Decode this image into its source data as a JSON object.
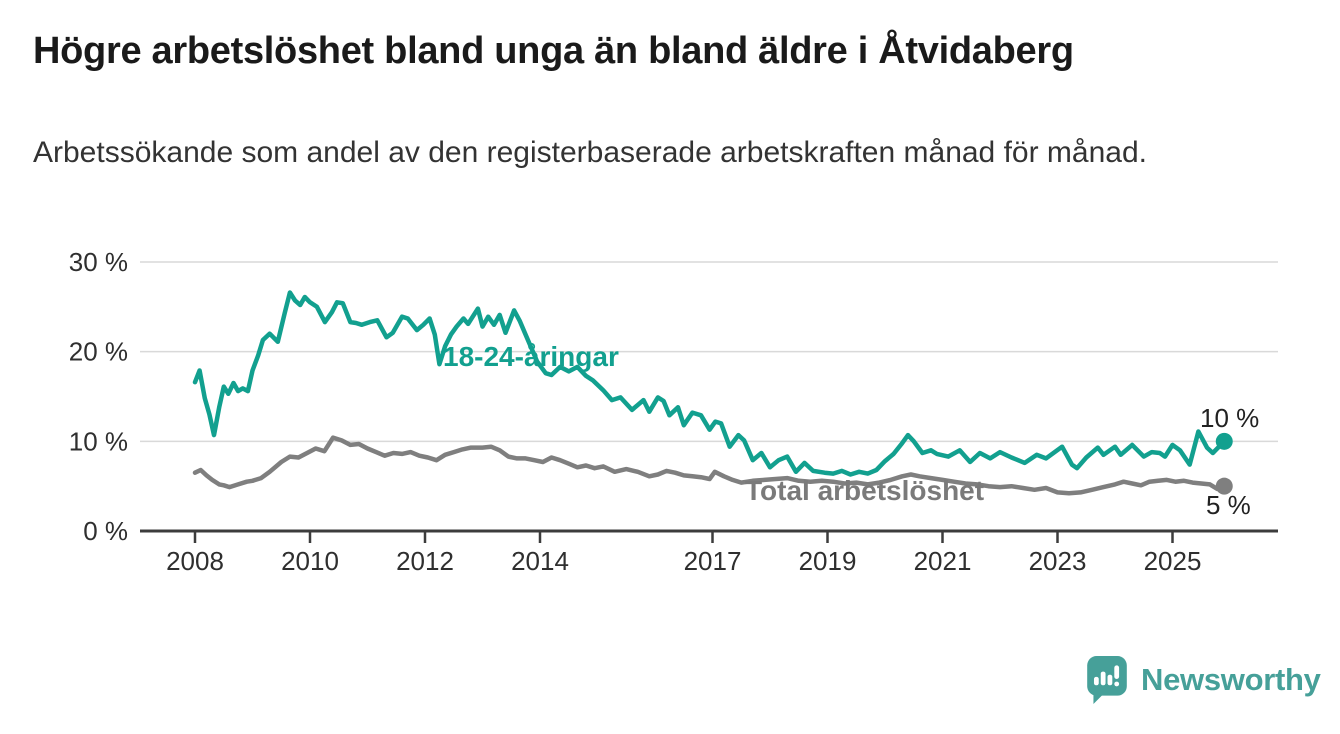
{
  "page": {
    "title": "Högre arbetslöshet bland unga än bland äldre i Åtvidaberg",
    "subtitle": "Arbetssökande som andel av den registerbaserade arbetskraften månad för månad."
  },
  "logo": {
    "text": "Newsworthy",
    "color": "#46a099"
  },
  "chart_data": {
    "type": "line",
    "title": "Högre arbetslöshet bland unga än bland äldre i Åtvidaberg",
    "xlabel": "",
    "ylabel": "",
    "unit": "%",
    "grid": "horizontal-gridlines",
    "legend_position": "labels-on-lines",
    "ylim": [
      0,
      30
    ],
    "x_range": [
      2008,
      2025.9
    ],
    "x_ticks": [
      2008,
      2010,
      2012,
      2014,
      2017,
      2019,
      2021,
      2023,
      2025
    ],
    "x_tick_labels": [
      "2008",
      "2010",
      "2012",
      "2014",
      "2017",
      "2019",
      "2021",
      "2023",
      "2025"
    ],
    "y_ticks": [
      0,
      10,
      20,
      30
    ],
    "y_tick_labels": [
      "0 %",
      "10 %",
      "20 %",
      "30 %"
    ],
    "series": [
      {
        "name": "18-24-åringar",
        "color": "#12a08f",
        "end_label": "10 %",
        "end_value": 10,
        "points": [
          [
            2008.0,
            16.6
          ],
          [
            2008.08,
            17.9
          ],
          [
            2008.17,
            14.8
          ],
          [
            2008.25,
            13.0
          ],
          [
            2008.33,
            10.7
          ],
          [
            2008.42,
            13.8
          ],
          [
            2008.5,
            16.1
          ],
          [
            2008.58,
            15.3
          ],
          [
            2008.67,
            16.5
          ],
          [
            2008.75,
            15.6
          ],
          [
            2008.83,
            15.9
          ],
          [
            2008.92,
            15.6
          ],
          [
            2009.0,
            17.9
          ],
          [
            2009.1,
            19.6
          ],
          [
            2009.18,
            21.3
          ],
          [
            2009.3,
            22.0
          ],
          [
            2009.44,
            21.1
          ],
          [
            2009.56,
            24.3
          ],
          [
            2009.65,
            26.6
          ],
          [
            2009.74,
            25.7
          ],
          [
            2009.83,
            25.2
          ],
          [
            2009.91,
            26.1
          ],
          [
            2010.0,
            25.5
          ],
          [
            2010.12,
            25.0
          ],
          [
            2010.26,
            23.3
          ],
          [
            2010.38,
            24.4
          ],
          [
            2010.47,
            25.5
          ],
          [
            2010.57,
            25.4
          ],
          [
            2010.7,
            23.3
          ],
          [
            2010.8,
            23.2
          ],
          [
            2010.9,
            23.0
          ],
          [
            2011.04,
            23.3
          ],
          [
            2011.17,
            23.5
          ],
          [
            2011.33,
            21.6
          ],
          [
            2011.44,
            22.1
          ],
          [
            2011.6,
            23.9
          ],
          [
            2011.7,
            23.7
          ],
          [
            2011.86,
            22.4
          ],
          [
            2011.97,
            23.0
          ],
          [
            2012.08,
            23.7
          ],
          [
            2012.17,
            21.9
          ],
          [
            2012.25,
            18.6
          ],
          [
            2012.35,
            20.6
          ],
          [
            2012.45,
            21.9
          ],
          [
            2012.55,
            22.8
          ],
          [
            2012.67,
            23.7
          ],
          [
            2012.75,
            23.1
          ],
          [
            2012.83,
            23.9
          ],
          [
            2012.92,
            24.8
          ],
          [
            2013.0,
            22.8
          ],
          [
            2013.1,
            23.9
          ],
          [
            2013.2,
            23.0
          ],
          [
            2013.3,
            24.1
          ],
          [
            2013.4,
            22.1
          ],
          [
            2013.55,
            24.6
          ],
          [
            2013.65,
            23.4
          ],
          [
            2013.75,
            21.9
          ],
          [
            2013.85,
            20.4
          ],
          [
            2013.95,
            18.9
          ],
          [
            2014.1,
            17.6
          ],
          [
            2014.2,
            17.4
          ],
          [
            2014.35,
            18.3
          ],
          [
            2014.5,
            17.8
          ],
          [
            2014.65,
            18.3
          ],
          [
            2014.8,
            17.3
          ],
          [
            2014.92,
            16.8
          ],
          [
            2015.1,
            15.7
          ],
          [
            2015.25,
            14.6
          ],
          [
            2015.4,
            14.9
          ],
          [
            2015.6,
            13.5
          ],
          [
            2015.8,
            14.6
          ],
          [
            2015.9,
            13.3
          ],
          [
            2016.05,
            14.9
          ],
          [
            2016.15,
            14.5
          ],
          [
            2016.25,
            12.9
          ],
          [
            2016.4,
            13.8
          ],
          [
            2016.5,
            11.8
          ],
          [
            2016.65,
            13.2
          ],
          [
            2016.8,
            12.9
          ],
          [
            2016.95,
            11.3
          ],
          [
            2017.05,
            12.2
          ],
          [
            2017.15,
            12.0
          ],
          [
            2017.3,
            9.4
          ],
          [
            2017.45,
            10.7
          ],
          [
            2017.55,
            10.1
          ],
          [
            2017.7,
            7.9
          ],
          [
            2017.85,
            8.7
          ],
          [
            2018.0,
            7.1
          ],
          [
            2018.15,
            7.9
          ],
          [
            2018.3,
            8.3
          ],
          [
            2018.45,
            6.6
          ],
          [
            2018.6,
            7.6
          ],
          [
            2018.75,
            6.7
          ],
          [
            2018.95,
            6.5
          ],
          [
            2019.1,
            6.4
          ],
          [
            2019.25,
            6.7
          ],
          [
            2019.4,
            6.3
          ],
          [
            2019.55,
            6.6
          ],
          [
            2019.7,
            6.4
          ],
          [
            2019.85,
            6.8
          ],
          [
            2020.0,
            7.8
          ],
          [
            2020.15,
            8.6
          ],
          [
            2020.3,
            9.8
          ],
          [
            2020.4,
            10.7
          ],
          [
            2020.5,
            10.0
          ],
          [
            2020.65,
            8.7
          ],
          [
            2020.8,
            9.0
          ],
          [
            2020.9,
            8.6
          ],
          [
            2021.1,
            8.3
          ],
          [
            2021.3,
            9.0
          ],
          [
            2021.48,
            7.7
          ],
          [
            2021.65,
            8.7
          ],
          [
            2021.83,
            8.1
          ],
          [
            2022.0,
            8.8
          ],
          [
            2022.2,
            8.2
          ],
          [
            2022.43,
            7.6
          ],
          [
            2022.64,
            8.5
          ],
          [
            2022.8,
            8.1
          ],
          [
            2023.08,
            9.4
          ],
          [
            2023.25,
            7.4
          ],
          [
            2023.34,
            7.0
          ],
          [
            2023.5,
            8.2
          ],
          [
            2023.7,
            9.3
          ],
          [
            2023.8,
            8.5
          ],
          [
            2024.0,
            9.4
          ],
          [
            2024.1,
            8.5
          ],
          [
            2024.3,
            9.6
          ],
          [
            2024.5,
            8.3
          ],
          [
            2024.64,
            8.8
          ],
          [
            2024.78,
            8.7
          ],
          [
            2024.87,
            8.3
          ],
          [
            2025.0,
            9.6
          ],
          [
            2025.13,
            9.0
          ],
          [
            2025.3,
            7.4
          ],
          [
            2025.45,
            11.1
          ],
          [
            2025.6,
            9.3
          ],
          [
            2025.7,
            8.7
          ],
          [
            2025.9,
            10.0
          ]
        ]
      },
      {
        "name": "Total arbetslöshet",
        "color": "#7f7f7f",
        "end_label": "5 %",
        "end_value": 5,
        "points": [
          [
            2008.0,
            6.5
          ],
          [
            2008.1,
            6.8
          ],
          [
            2008.2,
            6.2
          ],
          [
            2008.3,
            5.7
          ],
          [
            2008.42,
            5.2
          ],
          [
            2008.5,
            5.1
          ],
          [
            2008.6,
            4.9
          ],
          [
            2008.75,
            5.2
          ],
          [
            2008.9,
            5.5
          ],
          [
            2009.0,
            5.6
          ],
          [
            2009.15,
            5.9
          ],
          [
            2009.3,
            6.6
          ],
          [
            2009.5,
            7.7
          ],
          [
            2009.65,
            8.3
          ],
          [
            2009.8,
            8.2
          ],
          [
            2009.95,
            8.7
          ],
          [
            2010.1,
            9.2
          ],
          [
            2010.25,
            8.9
          ],
          [
            2010.4,
            10.4
          ],
          [
            2010.55,
            10.1
          ],
          [
            2010.7,
            9.6
          ],
          [
            2010.85,
            9.7
          ],
          [
            2011.0,
            9.2
          ],
          [
            2011.15,
            8.8
          ],
          [
            2011.3,
            8.4
          ],
          [
            2011.45,
            8.7
          ],
          [
            2011.6,
            8.6
          ],
          [
            2011.75,
            8.8
          ],
          [
            2011.9,
            8.4
          ],
          [
            2012.05,
            8.2
          ],
          [
            2012.2,
            7.9
          ],
          [
            2012.35,
            8.5
          ],
          [
            2012.5,
            8.8
          ],
          [
            2012.65,
            9.1
          ],
          [
            2012.8,
            9.3
          ],
          [
            2013.0,
            9.3
          ],
          [
            2013.15,
            9.4
          ],
          [
            2013.3,
            9.0
          ],
          [
            2013.45,
            8.3
          ],
          [
            2013.6,
            8.1
          ],
          [
            2013.75,
            8.1
          ],
          [
            2013.9,
            7.9
          ],
          [
            2014.05,
            7.7
          ],
          [
            2014.2,
            8.2
          ],
          [
            2014.35,
            7.9
          ],
          [
            2014.5,
            7.5
          ],
          [
            2014.65,
            7.1
          ],
          [
            2014.8,
            7.3
          ],
          [
            2014.95,
            7.0
          ],
          [
            2015.1,
            7.2
          ],
          [
            2015.3,
            6.6
          ],
          [
            2015.5,
            6.9
          ],
          [
            2015.7,
            6.6
          ],
          [
            2015.9,
            6.1
          ],
          [
            2016.05,
            6.3
          ],
          [
            2016.2,
            6.7
          ],
          [
            2016.35,
            6.5
          ],
          [
            2016.5,
            6.2
          ],
          [
            2016.65,
            6.1
          ],
          [
            2016.8,
            6.0
          ],
          [
            2016.95,
            5.8
          ],
          [
            2017.04,
            6.6
          ],
          [
            2017.2,
            6.1
          ],
          [
            2017.35,
            5.7
          ],
          [
            2017.5,
            5.4
          ],
          [
            2017.7,
            5.6
          ],
          [
            2017.9,
            5.7
          ],
          [
            2018.1,
            5.8
          ],
          [
            2018.3,
            5.9
          ],
          [
            2018.5,
            5.6
          ],
          [
            2018.7,
            5.5
          ],
          [
            2018.9,
            5.6
          ],
          [
            2019.1,
            5.5
          ],
          [
            2019.3,
            5.3
          ],
          [
            2019.5,
            5.4
          ],
          [
            2019.7,
            5.2
          ],
          [
            2019.9,
            5.4
          ],
          [
            2020.1,
            5.7
          ],
          [
            2020.3,
            6.1
          ],
          [
            2020.45,
            6.3
          ],
          [
            2020.6,
            6.1
          ],
          [
            2020.8,
            5.9
          ],
          [
            2021.0,
            5.7
          ],
          [
            2021.2,
            5.5
          ],
          [
            2021.4,
            5.3
          ],
          [
            2021.6,
            5.2
          ],
          [
            2021.8,
            5.0
          ],
          [
            2022.0,
            4.9
          ],
          [
            2022.2,
            5.0
          ],
          [
            2022.4,
            4.8
          ],
          [
            2022.6,
            4.6
          ],
          [
            2022.8,
            4.8
          ],
          [
            2023.0,
            4.3
          ],
          [
            2023.2,
            4.2
          ],
          [
            2023.4,
            4.3
          ],
          [
            2023.6,
            4.6
          ],
          [
            2023.8,
            4.9
          ],
          [
            2024.0,
            5.2
          ],
          [
            2024.15,
            5.5
          ],
          [
            2024.3,
            5.3
          ],
          [
            2024.45,
            5.1
          ],
          [
            2024.6,
            5.5
          ],
          [
            2024.75,
            5.6
          ],
          [
            2024.9,
            5.7
          ],
          [
            2025.05,
            5.5
          ],
          [
            2025.2,
            5.6
          ],
          [
            2025.35,
            5.4
          ],
          [
            2025.5,
            5.3
          ],
          [
            2025.65,
            5.2
          ],
          [
            2025.78,
            4.7
          ],
          [
            2025.9,
            5.0
          ]
        ]
      }
    ]
  }
}
